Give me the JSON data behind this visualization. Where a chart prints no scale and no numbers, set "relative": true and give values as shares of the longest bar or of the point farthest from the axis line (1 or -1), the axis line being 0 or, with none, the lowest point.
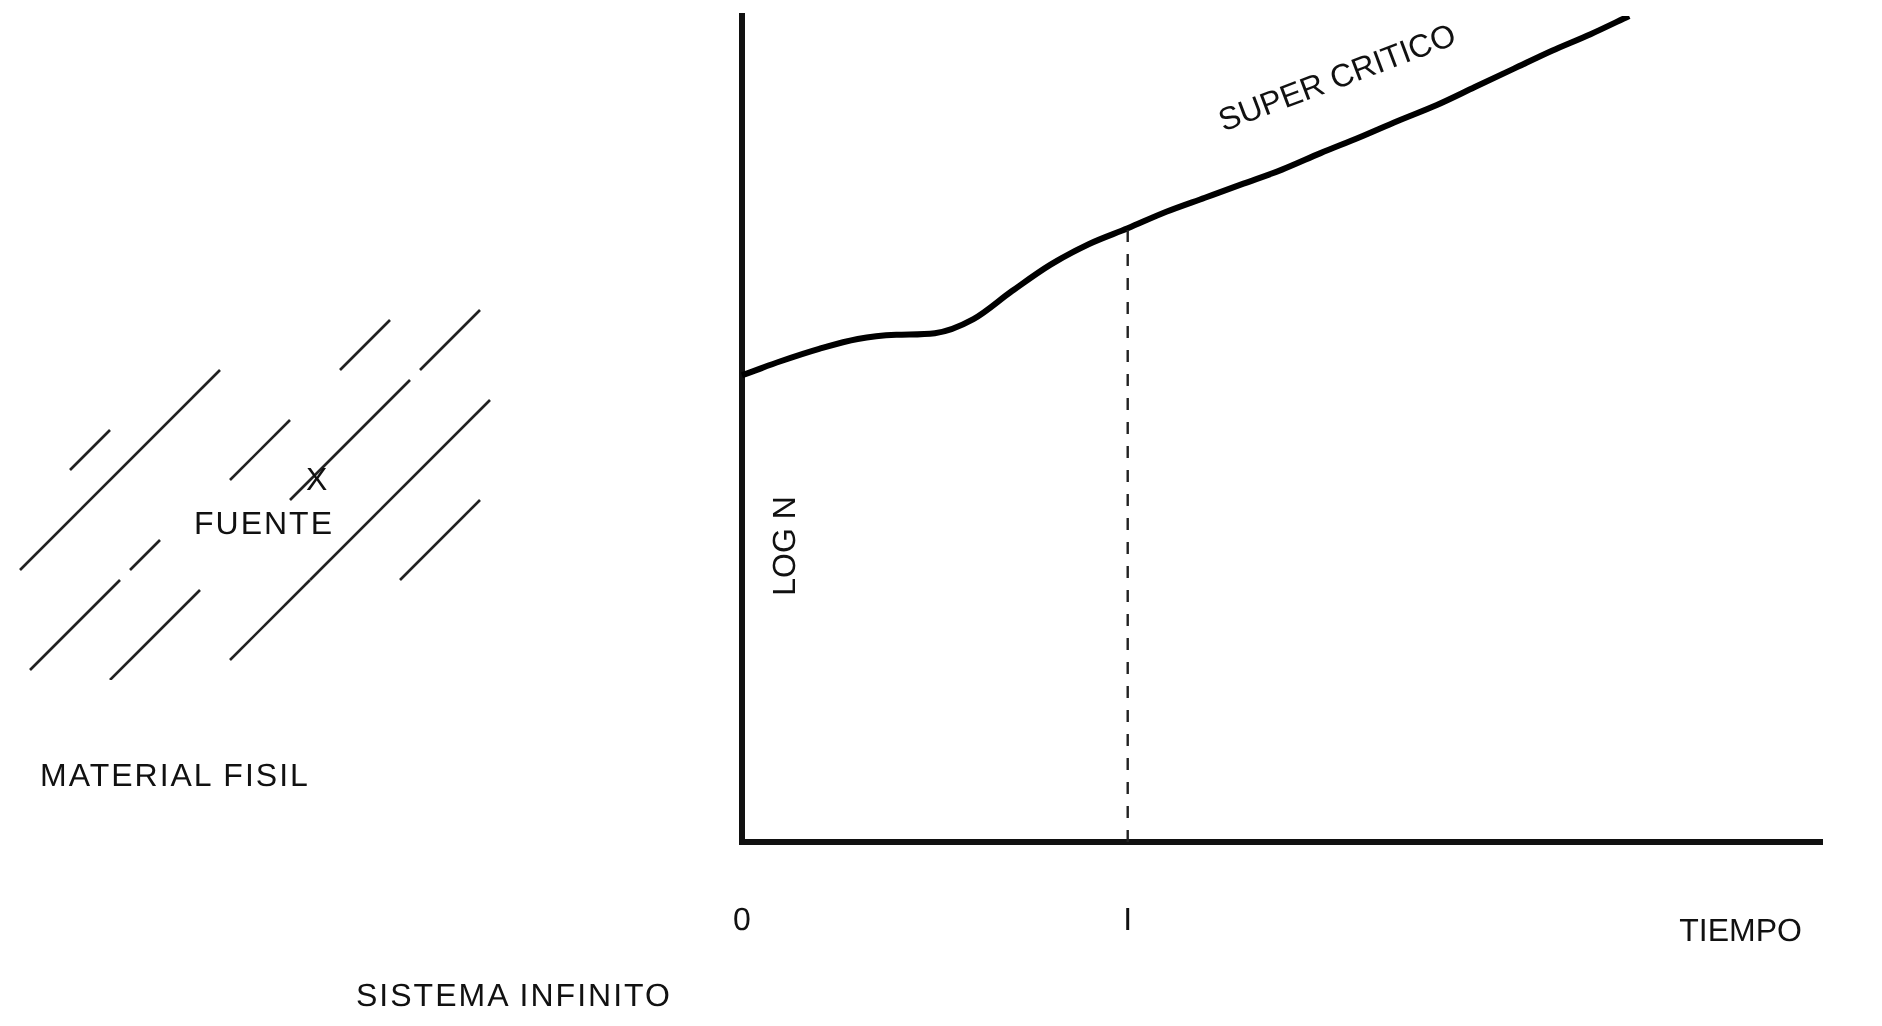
{
  "chart_data": {
    "type": "line",
    "relative": true,
    "xlabel": "TIEMPO",
    "ylabel": "LOG N",
    "categories": [
      "0",
      null,
      null,
      null,
      null,
      null,
      null,
      null,
      null,
      null,
      "I",
      null,
      null,
      null,
      null,
      null,
      null,
      null,
      null,
      null,
      null,
      null,
      null,
      null,
      null,
      null,
      null,
      null,
      null
    ],
    "series": [
      {
        "color": "#000000",
        "values": [
          0.565,
          0.582,
          0.597,
          0.609,
          0.614,
          0.616,
          0.633,
          0.667,
          0.699,
          0.724,
          0.743,
          0.763,
          0.78,
          0.797,
          0.814,
          0.834,
          0.853,
          0.873,
          0.892,
          0.914,
          0.936,
          0.958,
          0.978,
          1,
          null,
          null,
          null,
          null,
          null
        ]
      }
    ],
    "ref_lines": [
      {
        "axis": "x",
        "value": "I",
        "line_style": "dashed"
      }
    ],
    "annotations": [
      "SUPER CRITICO",
      "X",
      "FUENTE",
      "MATERIAL FISIL",
      "SISTEMA INFINITO"
    ],
    "grid": false,
    "legend": false,
    "marker": "none",
    "line_style": "solid"
  }
}
